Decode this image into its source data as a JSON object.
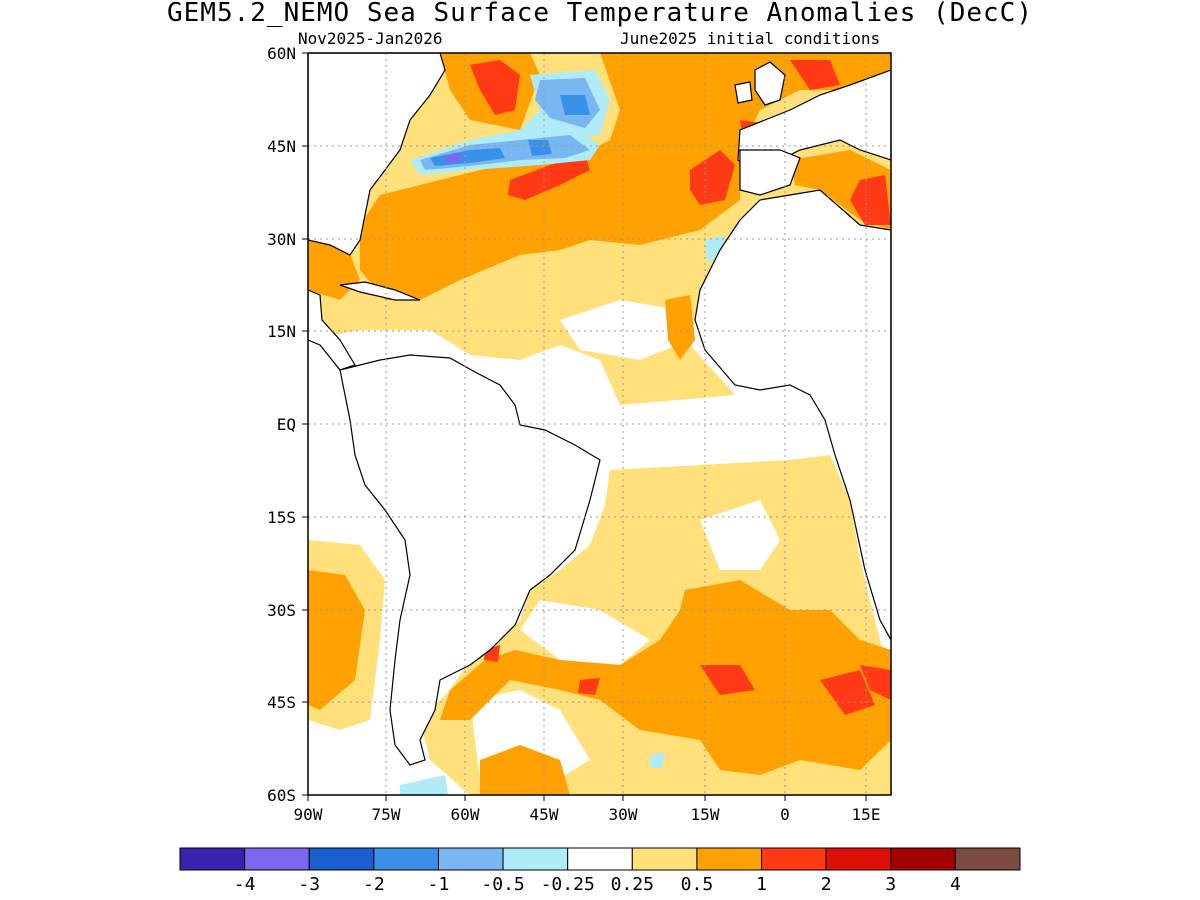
{
  "title": "GEM5.2_NEMO Sea Surface Temperature Anomalies (DecC)",
  "subtitle_left": "Nov2025-Jan2026",
  "subtitle_right": "June2025 initial conditions",
  "lat_labels": [
    "60N",
    "45N",
    "30N",
    "15N",
    "EQ",
    "15S",
    "30S",
    "45S",
    "60S"
  ],
  "lon_labels": [
    "90W",
    "75W",
    "60W",
    "45W",
    "30W",
    "15W",
    "0",
    "15E"
  ],
  "colorbar": {
    "colors": [
      "#3a22b0",
      "#7b68ee",
      "#1a5fcf",
      "#3a8fe8",
      "#78b7f2",
      "#b0ecf7",
      "#ffffff",
      "#ffe07a",
      "#ffa100",
      "#ff3a14",
      "#e01008",
      "#a30000",
      "#7b4a40"
    ],
    "labels": [
      "-4",
      "-3",
      "-2",
      "-1",
      "-0.5",
      "-0.25",
      "0.25",
      "0.5",
      "1",
      "2",
      "3",
      "4"
    ]
  }
}
